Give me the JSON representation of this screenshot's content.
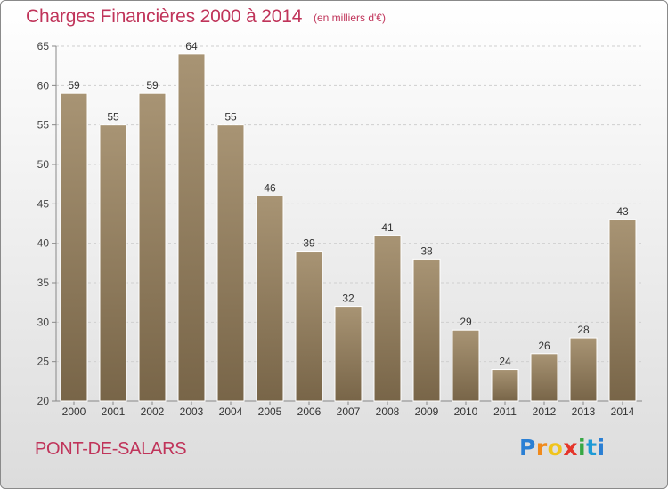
{
  "chart_data": {
    "type": "bar",
    "title": "Charges Financières 2000 à 2014",
    "subtitle": "(en milliers d'€)",
    "categories": [
      "2000",
      "2001",
      "2002",
      "2003",
      "2004",
      "2005",
      "2006",
      "2007",
      "2008",
      "2009",
      "2010",
      "2011",
      "2012",
      "2013",
      "2014"
    ],
    "values": [
      59,
      55,
      59,
      64,
      55,
      46,
      39,
      32,
      41,
      38,
      29,
      24,
      26,
      28,
      43
    ],
    "data_labels": [
      "59",
      "55",
      "59",
      "64",
      "55",
      "46",
      "39",
      "32",
      "41",
      "38",
      "29",
      "24",
      "26",
      "28",
      "43"
    ],
    "ylim": [
      20,
      65
    ],
    "yticks": [
      "20",
      "25",
      "30",
      "35",
      "40",
      "45",
      "50",
      "55",
      "60",
      "65"
    ],
    "grid": true,
    "colors": {
      "bar_top": "#a89474",
      "bar_bottom": "#786548",
      "title": "#c0345a"
    }
  },
  "footer": {
    "place": "PONT-DE-SALARS",
    "logo_letters": [
      "P",
      "r",
      "o",
      "x",
      "i",
      "t",
      "i"
    ]
  }
}
